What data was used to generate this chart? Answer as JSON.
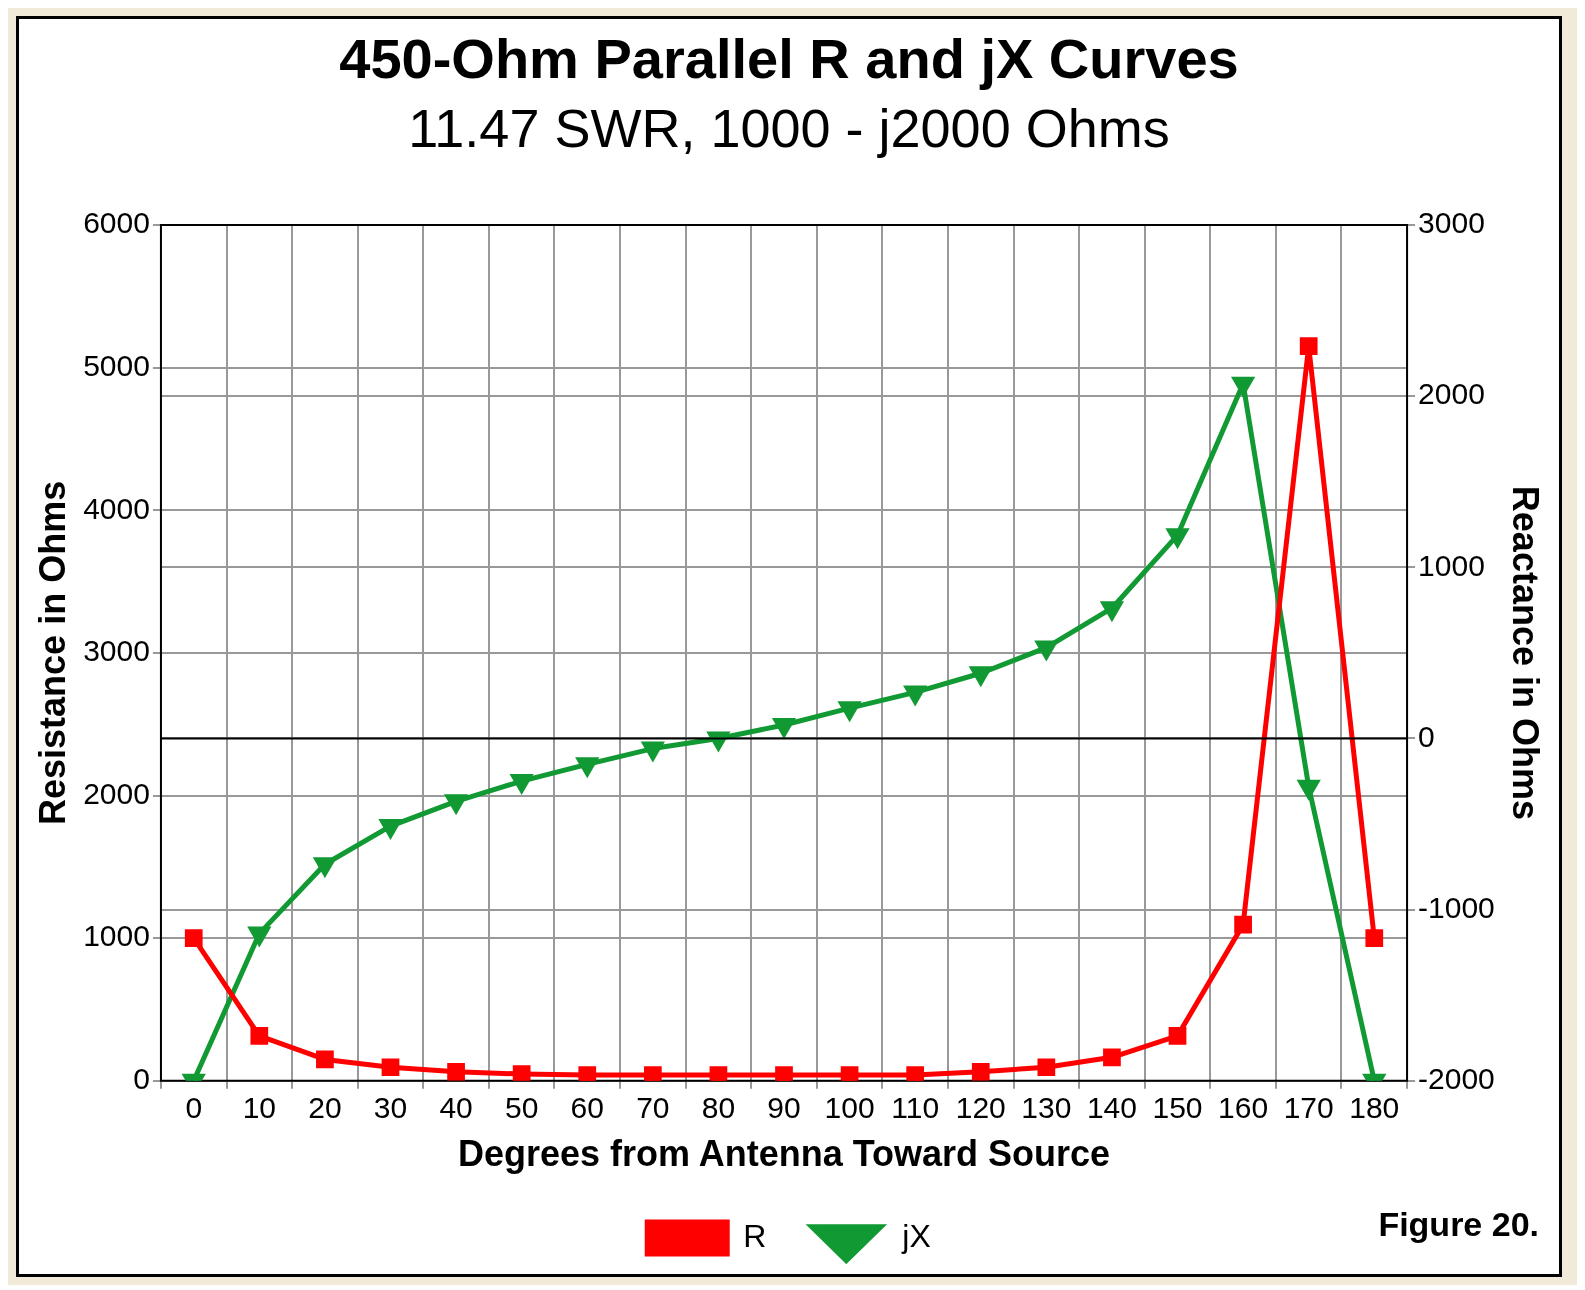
{
  "chart_data": {
    "type": "line",
    "title": "450-Ohm Parallel R and jX Curves",
    "subtitle": "11.47 SWR, 1000 - j2000 Ohms",
    "xlabel": "Degrees from Antenna Toward Source",
    "ylabel": "Resistance in Ohms",
    "y2label": "Reactance in Ohms",
    "categories": [
      "0",
      "10",
      "20",
      "30",
      "40",
      "50",
      "60",
      "70",
      "80",
      "90",
      "100",
      "110",
      "120",
      "130",
      "140",
      "150",
      "160",
      "170",
      "180"
    ],
    "series": [
      {
        "name": "R",
        "color": "#ff0000",
        "marker": "square",
        "values": [
          1000,
          315,
          150,
          95,
          63,
          47,
          40,
          40,
          40,
          40,
          40,
          40,
          63,
          95,
          165,
          315,
          1095,
          5150,
          1000
        ]
      },
      {
        "name": "jX",
        "color": "#119933",
        "marker": "triangle",
        "axis": "y2",
        "values": [
          -2000,
          -1140,
          -735,
          -512,
          -367,
          -249,
          -151,
          -59,
          0,
          79,
          177,
          269,
          381,
          531,
          761,
          1188,
          2073,
          -282,
          -2000
        ]
      }
    ],
    "ylim": [
      0,
      6000
    ],
    "yticks": [
      0,
      1000,
      2000,
      3000,
      4000,
      5000,
      6000
    ],
    "y2lim": [
      -2000,
      3000
    ],
    "y2ticks": [
      -2000,
      -1000,
      0,
      1000,
      2000,
      3000
    ],
    "ref_lines": [
      {
        "axis": "y2",
        "value": 0,
        "color": "#000000"
      }
    ],
    "grid": true,
    "legend": "bottom",
    "line_style": "solid",
    "annotations": [
      "Figure 20."
    ]
  }
}
